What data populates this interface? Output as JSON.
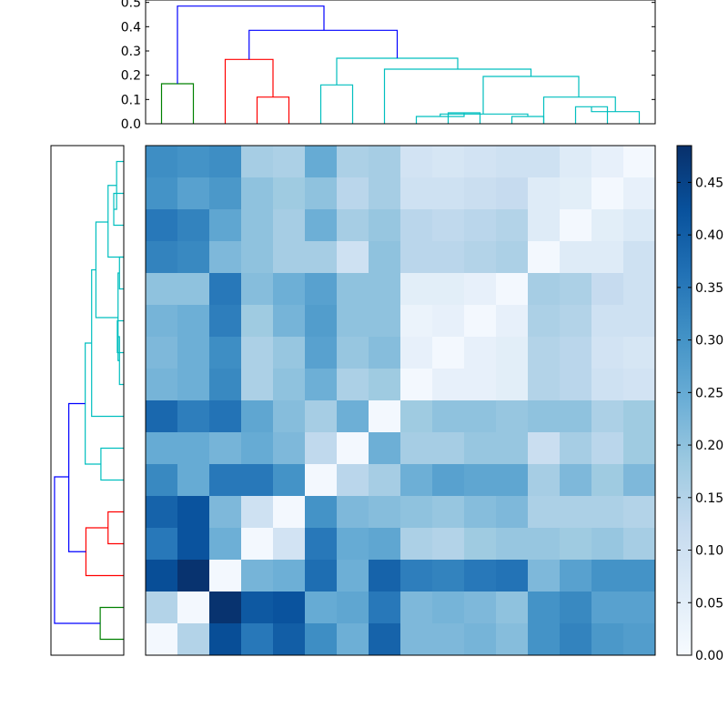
{
  "chart_data": [
    {
      "type": "dendrogram",
      "role": "top-dendrogram",
      "orientation": "top",
      "yticks": [
        "0.0",
        "0.1",
        "0.2",
        "0.3",
        "0.4",
        "0.5"
      ],
      "ylim": [
        0,
        0.51
      ],
      "leaf_count": 16,
      "colors": {
        "green": "#008000",
        "red": "#ff0000",
        "cyan": "#00bfbf",
        "blue": "#0000ff"
      },
      "links": [
        {
          "color": "green",
          "x1": 0.5,
          "x2": 1.5,
          "h1": 0,
          "h2": 0,
          "h": 0.165
        },
        {
          "color": "red",
          "x1": 3.5,
          "x2": 4.5,
          "h1": 0,
          "h2": 0,
          "h": 0.11
        },
        {
          "color": "red",
          "x1": 2.5,
          "x2": 4.0,
          "h1": 0,
          "h2": 0.11,
          "h": 0.265
        },
        {
          "color": "cyan",
          "x1": 5.5,
          "x2": 6.5,
          "h1": 0,
          "h2": 0,
          "h": 0.16
        },
        {
          "color": "cyan",
          "x1": 9.5,
          "x2": 10.5,
          "h1": 0,
          "h2": 0,
          "h": 0.045
        },
        {
          "color": "cyan",
          "x1": 8.5,
          "x2": 10.0,
          "h1": 0,
          "h2": 0.045,
          "h": 0.03
        },
        {
          "color": "cyan",
          "x1": 11.5,
          "x2": 12.5,
          "h1": 0,
          "h2": 0,
          "h": 0.03
        },
        {
          "color": "cyan",
          "x1": 9.25,
          "x2": 12.0,
          "h1": 0.03,
          "h2": 0.03,
          "h": 0.04
        },
        {
          "color": "cyan",
          "x1": 13.5,
          "x2": 14.5,
          "h1": 0,
          "h2": 0,
          "h": 0.07
        },
        {
          "color": "cyan",
          "x1": 14.0,
          "x2": 15.5,
          "h1": 0.07,
          "h2": 0,
          "h": 0.05
        },
        {
          "color": "cyan",
          "x1": 12.5,
          "x2": 14.75,
          "h1": 0,
          "h2": 0.05,
          "h": 0.11
        },
        {
          "color": "cyan",
          "x1": 10.6,
          "x2": 13.6,
          "h1": 0.04,
          "h2": 0.11,
          "h": 0.195
        },
        {
          "color": "cyan",
          "x1": 7.5,
          "x2": 12.1,
          "h1": 0,
          "h2": 0.195,
          "h": 0.225
        },
        {
          "color": "cyan",
          "x1": 6.0,
          "x2": 9.8,
          "h1": 0.16,
          "h2": 0.225,
          "h": 0.27
        },
        {
          "color": "blue",
          "x1": 3.25,
          "x2": 7.9,
          "h1": 0.265,
          "h2": 0.27,
          "h": 0.385
        },
        {
          "color": "blue",
          "x1": 1.0,
          "x2": 5.6,
          "h1": 0.165,
          "h2": 0.385,
          "h": 0.485
        }
      ]
    },
    {
      "type": "dendrogram",
      "role": "left-dendrogram",
      "orientation": "left",
      "leaf_count": 16,
      "xlim": [
        0,
        0.51
      ],
      "colors": {
        "green": "#008000",
        "red": "#ff0000",
        "cyan": "#00bfbf",
        "blue": "#0000ff"
      },
      "links": [
        {
          "color": "green",
          "y1": 0.5,
          "y2": 1.5,
          "h1": 0,
          "h2": 0,
          "h": 0.165
        },
        {
          "color": "red",
          "y1": 3.5,
          "y2": 4.5,
          "h1": 0,
          "h2": 0,
          "h": 0.11
        },
        {
          "color": "red",
          "y1": 2.5,
          "y2": 4.0,
          "h1": 0,
          "h2": 0.11,
          "h": 0.265
        },
        {
          "color": "cyan",
          "y1": 5.5,
          "y2": 6.5,
          "h1": 0,
          "h2": 0,
          "h": 0.16
        },
        {
          "color": "cyan",
          "y1": 9.5,
          "y2": 10.5,
          "h1": 0,
          "h2": 0,
          "h": 0.045
        },
        {
          "color": "cyan",
          "y1": 8.5,
          "y2": 10.0,
          "h1": 0,
          "h2": 0.045,
          "h": 0.03
        },
        {
          "color": "cyan",
          "y1": 11.5,
          "y2": 12.5,
          "h1": 0,
          "h2": 0,
          "h": 0.03
        },
        {
          "color": "cyan",
          "y1": 9.25,
          "y2": 12.0,
          "h1": 0.03,
          "h2": 0.03,
          "h": 0.04
        },
        {
          "color": "cyan",
          "y1": 13.5,
          "y2": 14.5,
          "h1": 0,
          "h2": 0,
          "h": 0.07
        },
        {
          "color": "cyan",
          "y1": 14.0,
          "y2": 15.5,
          "h1": 0.07,
          "h2": 0,
          "h": 0.05
        },
        {
          "color": "cyan",
          "y1": 12.5,
          "y2": 14.75,
          "h1": 0,
          "h2": 0.05,
          "h": 0.11
        },
        {
          "color": "cyan",
          "y1": 10.6,
          "y2": 13.6,
          "h1": 0.04,
          "h2": 0.11,
          "h": 0.195
        },
        {
          "color": "cyan",
          "y1": 7.5,
          "y2": 12.1,
          "h1": 0,
          "h2": 0.195,
          "h": 0.225
        },
        {
          "color": "cyan",
          "y1": 6.0,
          "y2": 9.8,
          "h1": 0.16,
          "h2": 0.225,
          "h": 0.27
        },
        {
          "color": "blue",
          "y1": 3.25,
          "y2": 7.9,
          "h1": 0.265,
          "h2": 0.27,
          "h": 0.385
        },
        {
          "color": "blue",
          "y1": 1.0,
          "y2": 5.6,
          "h1": 0.165,
          "h2": 0.385,
          "h": 0.485
        }
      ]
    },
    {
      "type": "heatmap",
      "role": "distance-matrix",
      "colormap": "Blues",
      "vmin": 0,
      "vmax": 0.485,
      "rows": 16,
      "cols": 16,
      "values": [
        [
          0.31,
          0.3,
          0.31,
          0.17,
          0.16,
          0.25,
          0.16,
          0.17,
          0.09,
          0.08,
          0.09,
          0.1,
          0.1,
          0.06,
          0.04,
          0.01
        ],
        [
          0.3,
          0.27,
          0.29,
          0.2,
          0.18,
          0.2,
          0.14,
          0.17,
          0.1,
          0.1,
          0.11,
          0.12,
          0.06,
          0.05,
          0.01,
          0.04
        ],
        [
          0.35,
          0.33,
          0.26,
          0.2,
          0.17,
          0.24,
          0.17,
          0.19,
          0.14,
          0.13,
          0.14,
          0.15,
          0.06,
          0.01,
          0.05,
          0.07
        ],
        [
          0.33,
          0.32,
          0.22,
          0.2,
          0.17,
          0.17,
          0.1,
          0.2,
          0.14,
          0.14,
          0.15,
          0.16,
          0.01,
          0.06,
          0.06,
          0.1
        ],
        [
          0.2,
          0.2,
          0.35,
          0.21,
          0.24,
          0.27,
          0.2,
          0.2,
          0.05,
          0.05,
          0.04,
          0.01,
          0.17,
          0.16,
          0.12,
          0.1
        ],
        [
          0.23,
          0.24,
          0.34,
          0.18,
          0.23,
          0.28,
          0.2,
          0.2,
          0.03,
          0.04,
          0.01,
          0.04,
          0.16,
          0.15,
          0.1,
          0.1
        ],
        [
          0.22,
          0.24,
          0.31,
          0.16,
          0.19,
          0.27,
          0.19,
          0.21,
          0.04,
          0.01,
          0.04,
          0.05,
          0.15,
          0.14,
          0.09,
          0.08
        ],
        [
          0.23,
          0.24,
          0.32,
          0.16,
          0.2,
          0.24,
          0.16,
          0.18,
          0.01,
          0.04,
          0.04,
          0.05,
          0.15,
          0.14,
          0.1,
          0.09
        ],
        [
          0.38,
          0.34,
          0.36,
          0.26,
          0.21,
          0.17,
          0.24,
          0.01,
          0.18,
          0.2,
          0.2,
          0.19,
          0.2,
          0.2,
          0.16,
          0.18
        ],
        [
          0.25,
          0.25,
          0.23,
          0.25,
          0.22,
          0.13,
          0.01,
          0.24,
          0.17,
          0.17,
          0.19,
          0.19,
          0.11,
          0.17,
          0.14,
          0.18
        ],
        [
          0.32,
          0.25,
          0.35,
          0.35,
          0.3,
          0.01,
          0.14,
          0.17,
          0.24,
          0.27,
          0.26,
          0.26,
          0.17,
          0.22,
          0.18,
          0.22
        ],
        [
          0.39,
          0.42,
          0.22,
          0.1,
          0.01,
          0.3,
          0.22,
          0.21,
          0.2,
          0.19,
          0.21,
          0.22,
          0.16,
          0.16,
          0.16,
          0.15
        ],
        [
          0.35,
          0.42,
          0.24,
          0.01,
          0.09,
          0.35,
          0.25,
          0.26,
          0.16,
          0.15,
          0.18,
          0.19,
          0.19,
          0.18,
          0.19,
          0.17
        ],
        [
          0.43,
          0.48,
          0.01,
          0.23,
          0.24,
          0.37,
          0.24,
          0.39,
          0.34,
          0.33,
          0.35,
          0.36,
          0.22,
          0.27,
          0.3,
          0.3
        ],
        [
          0.15,
          0.01,
          0.48,
          0.41,
          0.42,
          0.25,
          0.26,
          0.35,
          0.22,
          0.23,
          0.22,
          0.2,
          0.3,
          0.32,
          0.27,
          0.27
        ],
        [
          0.01,
          0.15,
          0.43,
          0.35,
          0.4,
          0.31,
          0.24,
          0.39,
          0.22,
          0.22,
          0.23,
          0.21,
          0.3,
          0.33,
          0.29,
          0.28
        ]
      ]
    },
    {
      "type": "colorbar",
      "role": "colorbar",
      "ticks": [
        "0.00",
        "0.05",
        "0.10",
        "0.15",
        "0.20",
        "0.25",
        "0.30",
        "0.35",
        "0.40",
        "0.45"
      ],
      "vmin": 0,
      "vmax": 0.485
    }
  ]
}
